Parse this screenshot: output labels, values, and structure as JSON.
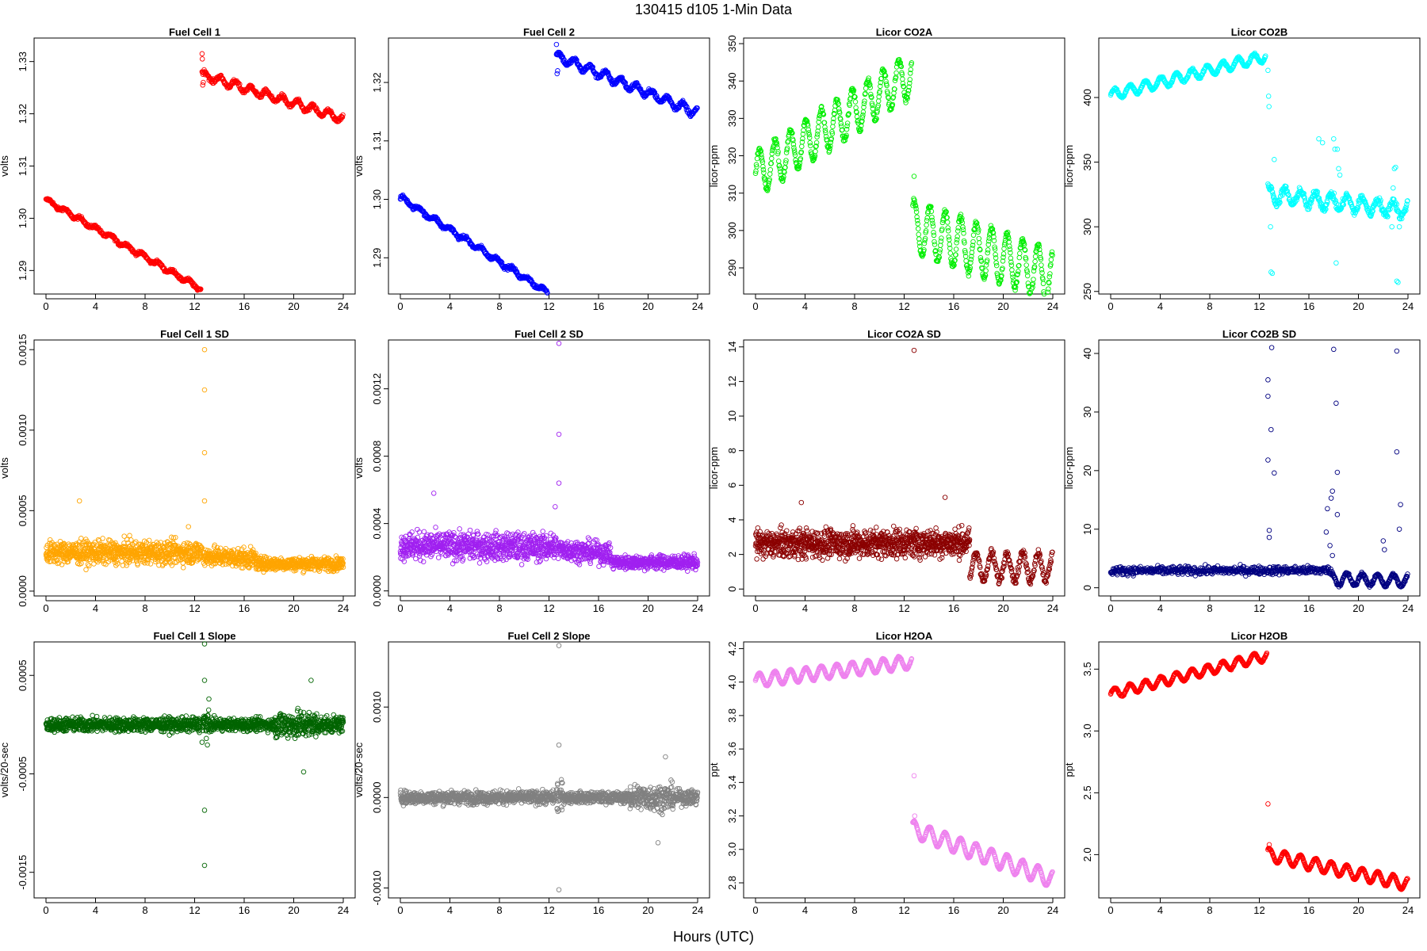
{
  "figure": {
    "title": "130415   d105   1-Min Data",
    "xlabel": "Hours (UTC)"
  },
  "chart_data": [
    {
      "type": "scatter",
      "title": "Fuel Cell 1",
      "ylabel": "volts",
      "color": "#ff0000",
      "xlim": [
        -0.96,
        24.96
      ],
      "xticks": [
        0,
        4,
        8,
        12,
        16,
        20,
        24
      ],
      "ylim": [
        1.2855,
        1.3345
      ],
      "yticks": [
        1.29,
        1.3,
        1.31,
        1.32,
        1.33
      ],
      "ytick_labels": [
        "1.29",
        "1.30",
        "1.31",
        "1.32",
        "1.33"
      ],
      "segments": [
        {
          "x0": 0,
          "x1": 12.5,
          "y0": 1.3035,
          "y1": 1.2865,
          "wave": 0.0004,
          "noise": 0.0003
        },
        {
          "x0": 12.6,
          "x1": 24,
          "y0": 1.3275,
          "y1": 1.319,
          "wave": 0.0007,
          "noise": 0.0004
        }
      ],
      "outliers": [
        [
          12.6,
          1.3315
        ],
        [
          12.65,
          1.3255
        ],
        [
          12.7,
          1.326
        ],
        [
          12.62,
          1.3305
        ]
      ]
    },
    {
      "type": "scatter",
      "title": "Fuel Cell 2",
      "ylabel": "volts",
      "color": "#0000ff",
      "xlim": [
        -0.96,
        24.96
      ],
      "xticks": [
        0,
        4,
        8,
        12,
        16,
        20,
        24
      ],
      "ylim": [
        1.2838,
        1.3276
      ],
      "yticks": [
        1.29,
        1.3,
        1.31,
        1.32
      ],
      "ytick_labels": [
        "1.29",
        "1.30",
        "1.31",
        "1.32"
      ],
      "segments": [
        {
          "x0": 0,
          "x1": 12.5,
          "y0": 1.3003,
          "y1": 1.2832,
          "wave": 0.0004,
          "noise": 0.0003
        },
        {
          "x0": 12.6,
          "x1": 24,
          "y0": 1.3245,
          "y1": 1.3148,
          "wave": 0.0007,
          "noise": 0.0004
        }
      ],
      "outliers": [
        [
          12.6,
          1.3265
        ],
        [
          12.65,
          1.3215
        ],
        [
          12.7,
          1.322
        ]
      ]
    },
    {
      "type": "scatter",
      "title": "Licor CO2A",
      "ylabel": "licor-ppm",
      "color": "#00ee00",
      "xlim": [
        -0.96,
        24.96
      ],
      "xticks": [
        0,
        4,
        8,
        12,
        16,
        20,
        24
      ],
      "ylim": [
        283,
        351.5
      ],
      "yticks": [
        290,
        300,
        310,
        320,
        330,
        340,
        350
      ],
      "ytick_labels": [
        "290",
        "300",
        "310",
        "320",
        "330",
        "340",
        "350"
      ],
      "segments": [
        {
          "x0": 0,
          "x1": 12.6,
          "y0": 315,
          "y1": 342,
          "wave": 6,
          "noise": 0.8
        },
        {
          "x0": 12.7,
          "x1": 24,
          "y0": 301,
          "y1": 288,
          "wave": 7,
          "noise": 0.8
        }
      ],
      "outliers": [
        [
          12.8,
          314.5
        ]
      ]
    },
    {
      "type": "scatter",
      "title": "Licor CO2B",
      "ylabel": "licor-ppm",
      "color": "#00ffff",
      "xlim": [
        -0.96,
        24.96
      ],
      "xticks": [
        0,
        4,
        8,
        12,
        16,
        20,
        24
      ],
      "ylim": [
        248,
        446
      ],
      "yticks": [
        250,
        300,
        350,
        400
      ],
      "ytick_labels": [
        "250",
        "300",
        "350",
        "400"
      ],
      "segments": [
        {
          "x0": 0,
          "x1": 12.5,
          "y0": 402,
          "y1": 432,
          "wave": 4,
          "noise": 1
        },
        {
          "x0": 12.7,
          "x1": 24,
          "y0": 325,
          "y1": 313,
          "wave": 6,
          "noise": 3
        }
      ],
      "outliers": [
        [
          12.7,
          421
        ],
        [
          12.75,
          401
        ],
        [
          12.78,
          393
        ],
        [
          12.9,
          300
        ],
        [
          12.95,
          265
        ],
        [
          13.05,
          264
        ],
        [
          13.2,
          352
        ],
        [
          16.8,
          368
        ],
        [
          17.1,
          365
        ],
        [
          18.0,
          368
        ],
        [
          18.1,
          360
        ],
        [
          18.2,
          272
        ],
        [
          18.3,
          360
        ],
        [
          18.4,
          345
        ],
        [
          18.5,
          340
        ],
        [
          22.9,
          345
        ],
        [
          23.0,
          346
        ],
        [
          23.1,
          258
        ],
        [
          23.2,
          257
        ],
        [
          23.3,
          300
        ],
        [
          22.7,
          300
        ],
        [
          22.8,
          330
        ]
      ]
    },
    {
      "type": "scatter",
      "title": "Fuel Cell 1 SD",
      "ylabel": "volts",
      "color": "#ffa500",
      "xlim": [
        -0.96,
        24.96
      ],
      "xticks": [
        0,
        4,
        8,
        12,
        16,
        20,
        24
      ],
      "ylim": [
        -3e-05,
        0.00156
      ],
      "yticks": [
        0,
        0.0005,
        0.001,
        0.0015
      ],
      "ytick_labels": [
        "0.0000",
        "0.0005",
        "0.0010",
        "0.0015"
      ],
      "segments": [
        {
          "x0": 0,
          "x1": 12.6,
          "y0": 0.00024,
          "y1": 0.00024,
          "wave": 0,
          "noise": 7e-05
        },
        {
          "x0": 12.7,
          "x1": 17,
          "y0": 0.00022,
          "y1": 0.0002,
          "wave": 0,
          "noise": 6e-05
        },
        {
          "x0": 17,
          "x1": 24,
          "y0": 0.00017,
          "y1": 0.00017,
          "wave": 0,
          "noise": 4e-05
        }
      ],
      "outliers": [
        [
          12.8,
          0.0015
        ],
        [
          12.8,
          0.00125
        ],
        [
          12.8,
          0.00086
        ],
        [
          12.8,
          0.00056
        ],
        [
          2.7,
          0.00056
        ],
        [
          11.5,
          0.0004
        ]
      ]
    },
    {
      "type": "scatter",
      "title": "Fuel Cell 2 SD",
      "ylabel": "volts",
      "color": "#a020f0",
      "xlim": [
        -0.96,
        24.96
      ],
      "xticks": [
        0,
        4,
        8,
        12,
        16,
        20,
        24
      ],
      "ylim": [
        -3e-05,
        0.00149
      ],
      "yticks": [
        0,
        0.0004,
        0.0008,
        0.0012
      ],
      "ytick_labels": [
        "0.0000",
        "0.0004",
        "0.0008",
        "0.0012"
      ],
      "segments": [
        {
          "x0": 0,
          "x1": 12.6,
          "y0": 0.00027,
          "y1": 0.00026,
          "wave": 0,
          "noise": 8e-05
        },
        {
          "x0": 12.7,
          "x1": 17,
          "y0": 0.00025,
          "y1": 0.00022,
          "wave": 0,
          "noise": 6e-05
        },
        {
          "x0": 17,
          "x1": 24,
          "y0": 0.00017,
          "y1": 0.00017,
          "wave": 0,
          "noise": 4e-05
        }
      ],
      "outliers": [
        [
          12.8,
          0.00147
        ],
        [
          12.8,
          0.00093
        ],
        [
          12.8,
          0.00064
        ],
        [
          2.7,
          0.00058
        ],
        [
          12.5,
          0.0005
        ]
      ]
    },
    {
      "type": "scatter",
      "title": "Licor CO2A SD",
      "ylabel": "licor-ppm",
      "color": "#8b0000",
      "xlim": [
        -0.96,
        24.96
      ],
      "xticks": [
        0,
        4,
        8,
        12,
        16,
        20,
        24
      ],
      "ylim": [
        -0.4,
        14.4
      ],
      "yticks": [
        0,
        2,
        4,
        6,
        8,
        10,
        12,
        14
      ],
      "ytick_labels": [
        "0",
        "2",
        "4",
        "6",
        "8",
        "10",
        "12",
        "14"
      ],
      "segments": [
        {
          "x0": 0,
          "x1": 17.3,
          "y0": 2.6,
          "y1": 2.7,
          "wave": 0,
          "noise": 0.8
        },
        {
          "x0": 17.3,
          "x1": 24,
          "y0": 1.3,
          "y1": 1.3,
          "wave": 0.8,
          "noise": 0.25
        }
      ],
      "outliers": [
        [
          12.8,
          13.8
        ],
        [
          3.7,
          5.0
        ],
        [
          15.3,
          5.3
        ]
      ]
    },
    {
      "type": "scatter",
      "title": "Licor CO2B SD",
      "ylabel": "licor-ppm",
      "color": "#000080",
      "xlim": [
        -0.96,
        24.96
      ],
      "xticks": [
        0,
        4,
        8,
        12,
        16,
        20,
        24
      ],
      "ylim": [
        -1.4,
        42.3
      ],
      "yticks": [
        0,
        10,
        20,
        30,
        40
      ],
      "ytick_labels": [
        "0",
        "10",
        "20",
        "30",
        "40"
      ],
      "segments": [
        {
          "x0": 0,
          "x1": 17.8,
          "y0": 2.9,
          "y1": 3.0,
          "wave": 0,
          "noise": 0.7
        },
        {
          "x0": 17.8,
          "x1": 24,
          "y0": 1.5,
          "y1": 1.2,
          "wave": 1.0,
          "noise": 0.3
        }
      ],
      "outliers": [
        [
          12.7,
          35.5
        ],
        [
          12.7,
          32.7
        ],
        [
          12.7,
          21.8
        ],
        [
          12.8,
          9.8
        ],
        [
          12.8,
          8.6
        ],
        [
          13.0,
          41.0
        ],
        [
          12.95,
          27.0
        ],
        [
          13.2,
          19.6
        ],
        [
          17.4,
          9.5
        ],
        [
          17.5,
          13.5
        ],
        [
          17.8,
          15.3
        ],
        [
          17.9,
          16.5
        ],
        [
          18.0,
          40.7
        ],
        [
          18.2,
          31.5
        ],
        [
          18.3,
          19.7
        ],
        [
          18.3,
          12.5
        ],
        [
          17.7,
          7.2
        ],
        [
          17.9,
          5.5
        ],
        [
          22.0,
          8.0
        ],
        [
          22.1,
          6.5
        ],
        [
          23.1,
          40.4
        ],
        [
          23.1,
          23.2
        ],
        [
          23.4,
          14.2
        ],
        [
          23.3,
          10.0
        ]
      ]
    },
    {
      "type": "scatter",
      "title": "Fuel Cell 1 Slope",
      "ylabel": "volts/20-sec",
      "color": "#006400",
      "xlim": [
        -0.96,
        24.96
      ],
      "xticks": [
        0,
        4,
        8,
        12,
        16,
        20,
        24
      ],
      "ylim": [
        -0.00176,
        0.00084
      ],
      "yticks": [
        -0.0015,
        -0.0005,
        0.0005
      ],
      "ytick_labels": [
        "-0.0015",
        "-0.0005",
        "0.0005"
      ],
      "segments": [
        {
          "x0": 0,
          "x1": 12.5,
          "y0": 0.0,
          "y1": 0.0,
          "wave": 0,
          "noise": 7e-05
        },
        {
          "x0": 12.6,
          "x1": 13.2,
          "y0": 0.0,
          "y1": 0.0,
          "wave": 0,
          "noise": 0.00018
        },
        {
          "x0": 13.2,
          "x1": 18.5,
          "y0": 0.0,
          "y1": 0.0,
          "wave": 0,
          "noise": 6e-05
        },
        {
          "x0": 18.5,
          "x1": 22,
          "y0": 0.0,
          "y1": 0.0,
          "wave": 0,
          "noise": 0.00014
        },
        {
          "x0": 22,
          "x1": 24,
          "y0": 0.0,
          "y1": 0.0,
          "wave": 0,
          "noise": 8e-05
        }
      ],
      "outliers": [
        [
          12.8,
          0.00082
        ],
        [
          12.8,
          0.00045
        ],
        [
          12.8,
          -0.00087
        ],
        [
          12.8,
          -0.00143
        ],
        [
          12.8,
          -0.00177
        ],
        [
          21.4,
          0.00045
        ],
        [
          20.8,
          -0.00048
        ]
      ]
    },
    {
      "type": "scatter",
      "title": "Fuel Cell 2 Slope",
      "ylabel": "volts/20-sec",
      "color": "#808080",
      "xlim": [
        -0.96,
        24.96
      ],
      "xticks": [
        0,
        4,
        8,
        12,
        16,
        20,
        24
      ],
      "ylim": [
        -0.00111,
        0.00172
      ],
      "yticks": [
        -0.001,
        0,
        0.001
      ],
      "ytick_labels": [
        "-0.0010",
        "0.0000",
        "0.0010"
      ],
      "segments": [
        {
          "x0": 0,
          "x1": 12.5,
          "y0": 0.0,
          "y1": 0.0,
          "wave": 0,
          "noise": 7e-05
        },
        {
          "x0": 12.6,
          "x1": 13.2,
          "y0": 0.0,
          "y1": 0.0,
          "wave": 0,
          "noise": 0.00018
        },
        {
          "x0": 13.2,
          "x1": 18.5,
          "y0": 0.0,
          "y1": 0.0,
          "wave": 0,
          "noise": 6e-05
        },
        {
          "x0": 18.5,
          "x1": 22,
          "y0": 0.0,
          "y1": 0.0,
          "wave": 0,
          "noise": 0.00014
        },
        {
          "x0": 22,
          "x1": 24,
          "y0": 0.0,
          "y1": 0.0,
          "wave": 0,
          "noise": 8e-05
        }
      ],
      "outliers": [
        [
          12.8,
          0.00168
        ],
        [
          12.8,
          -0.00102
        ],
        [
          12.8,
          0.00058
        ],
        [
          21.4,
          0.00045
        ],
        [
          20.8,
          -0.0005
        ]
      ]
    },
    {
      "type": "scatter",
      "title": "Licor H2OA",
      "ylabel": "ppt",
      "color": "#ee82ee",
      "xlim": [
        -0.96,
        24.96
      ],
      "xticks": [
        0,
        4,
        8,
        12,
        16,
        20,
        24
      ],
      "ylim": [
        2.71,
        4.24
      ],
      "yticks": [
        2.8,
        3.0,
        3.2,
        3.4,
        3.6,
        3.8,
        4.0,
        4.2
      ],
      "ytick_labels": [
        "2.8",
        "3.0",
        "3.2",
        "3.4",
        "3.6",
        "3.8",
        "4.0",
        "4.2"
      ],
      "segments": [
        {
          "x0": 0,
          "x1": 12.6,
          "y0": 4.01,
          "y1": 4.12,
          "wave": 0.04,
          "noise": 0.003
        },
        {
          "x0": 12.7,
          "x1": 24,
          "y0": 3.12,
          "y1": 2.82,
          "wave": 0.05,
          "noise": 0.003
        }
      ],
      "outliers": [
        [
          12.8,
          3.44
        ],
        [
          12.85,
          3.2
        ]
      ]
    },
    {
      "type": "scatter",
      "title": "Licor H2OB",
      "ylabel": "ppt",
      "color": "#ff0000",
      "xlim": [
        -0.96,
        24.96
      ],
      "xticks": [
        0,
        4,
        8,
        12,
        16,
        20,
        24
      ],
      "ylim": [
        1.65,
        3.72
      ],
      "yticks": [
        2.0,
        2.5,
        3.0,
        3.5
      ],
      "ytick_labels": [
        "2.0",
        "2.5",
        "3.0",
        "3.5"
      ],
      "segments": [
        {
          "x0": 0,
          "x1": 12.6,
          "y0": 3.3,
          "y1": 3.61,
          "wave": 0.04,
          "noise": 0.005
        },
        {
          "x0": 12.7,
          "x1": 24,
          "y0": 2.0,
          "y1": 1.76,
          "wave": 0.05,
          "noise": 0.005
        }
      ],
      "outliers": [
        [
          12.7,
          2.41
        ],
        [
          12.8,
          2.08
        ]
      ]
    }
  ]
}
